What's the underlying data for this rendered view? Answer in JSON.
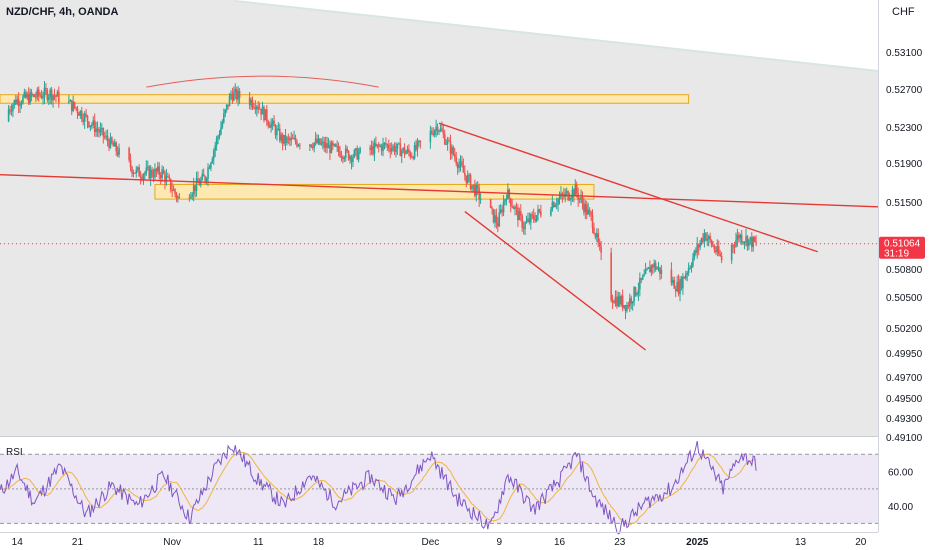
{
  "header": {
    "symbol": "NZD/CHF, 4h, OANDA",
    "currency": "CHF"
  },
  "colors": {
    "bull": "#26a69a",
    "bear": "#ef5350",
    "trendline": "#e53935",
    "zone_fill": "#fde9b0",
    "zone_stroke": "#e6a817",
    "rsi_line": "#7e57c2",
    "rsi_ma": "#f2b53c",
    "rsi_band": "#ede7f6",
    "price_label_bg": "#f23645",
    "chart_bg": "#e8e8e8",
    "axis_text": "#131722"
  },
  "price_label": {
    "value": "0.51064",
    "countdown": "31:19"
  },
  "rsi": {
    "label": "RSI",
    "tick_labels": [
      "60.00",
      "40.00"
    ]
  },
  "chart_data": [
    {
      "type": "candlestick",
      "title": "NZD/CHF, 4h, OANDA",
      "ylabel": "CHF",
      "ylim": [
        0.491,
        0.533
      ],
      "y_ticks": [
        0.531,
        0.527,
        0.523,
        0.519,
        0.515,
        0.508,
        0.505,
        0.502,
        0.4995,
        0.497,
        0.495,
        0.493,
        0.491
      ],
      "y_tick_labels": [
        "0.53100",
        "0.52700",
        "0.52300",
        "0.51900",
        "0.51500",
        "0.50800",
        "0.50500",
        "0.50200",
        "0.49950",
        "0.49700",
        "0.49500",
        "0.49300",
        "0.49100"
      ],
      "x_tick_labels": [
        "14",
        "21",
        "Nov",
        "11",
        "18",
        "Dec",
        "9",
        "16",
        "23",
        "2025",
        "13",
        "20"
      ],
      "x_range": [
        "2024-10-12",
        "2025-01-22"
      ],
      "last_price": 0.51064,
      "price_anchors": [
        {
          "date": "2024-10-12",
          "price": 0.5236
        },
        {
          "date": "2024-10-14",
          "price": 0.5258
        },
        {
          "date": "2024-10-18",
          "price": 0.5266
        },
        {
          "date": "2024-10-21",
          "price": 0.525
        },
        {
          "date": "2024-10-24",
          "price": 0.5222
        },
        {
          "date": "2024-10-28",
          "price": 0.518
        },
        {
          "date": "2024-10-31",
          "price": 0.518
        },
        {
          "date": "2024-11-02",
          "price": 0.5152
        },
        {
          "date": "2024-11-05",
          "price": 0.5175
        },
        {
          "date": "2024-11-08",
          "price": 0.5265
        },
        {
          "date": "2024-11-11",
          "price": 0.5255
        },
        {
          "date": "2024-11-14",
          "price": 0.5215
        },
        {
          "date": "2024-11-18",
          "price": 0.5212
        },
        {
          "date": "2024-11-22",
          "price": 0.5198
        },
        {
          "date": "2024-11-26",
          "price": 0.521
        },
        {
          "date": "2024-11-29",
          "price": 0.52
        },
        {
          "date": "2024-12-02",
          "price": 0.5232
        },
        {
          "date": "2024-12-05",
          "price": 0.518
        },
        {
          "date": "2024-12-09",
          "price": 0.5128
        },
        {
          "date": "2024-12-10",
          "price": 0.516
        },
        {
          "date": "2024-12-12",
          "price": 0.5125
        },
        {
          "date": "2024-12-15",
          "price": 0.5148
        },
        {
          "date": "2024-12-18",
          "price": 0.5162
        },
        {
          "date": "2024-12-20",
          "price": 0.513
        },
        {
          "date": "2024-12-22",
          "price": 0.5052
        },
        {
          "date": "2024-12-24",
          "price": 0.5042
        },
        {
          "date": "2024-12-27",
          "price": 0.5085
        },
        {
          "date": "2024-12-30",
          "price": 0.506
        },
        {
          "date": "2025-01-02",
          "price": 0.5117
        },
        {
          "date": "2025-01-04",
          "price": 0.509
        },
        {
          "date": "2025-01-06",
          "price": 0.5115
        },
        {
          "date": "2025-01-08",
          "price": 0.5106
        }
      ],
      "zones": [
        {
          "from": "2024-10-12",
          "to": "2024-12-31",
          "low": 0.5255,
          "high": 0.5264
        },
        {
          "from": "2024-10-30",
          "to": "2024-12-20",
          "low": 0.5153,
          "high": 0.5168
        }
      ],
      "trendlines": [
        {
          "from": {
            "date": "2024-10-12",
            "price": 0.5178
          },
          "to": {
            "date": "2025-01-22",
            "price": 0.5145
          }
        },
        {
          "from": {
            "date": "2024-12-02",
            "price": 0.5234
          },
          "to": {
            "date": "2025-01-15",
            "price": 0.5098
          }
        },
        {
          "from": {
            "date": "2024-12-05",
            "price": 0.514
          },
          "to": {
            "date": "2024-12-26",
            "price": 0.4998
          }
        }
      ],
      "arc": {
        "from": "2024-10-29",
        "to": "2024-11-25",
        "price": 0.5272
      }
    },
    {
      "type": "line",
      "title": "RSI",
      "ylim": [
        25,
        80
      ],
      "bands": [
        30,
        50,
        70
      ],
      "y_tick_labels": [
        "60.00",
        "40.00"
      ],
      "rsi_anchors": [
        {
          "date": "2024-10-12",
          "value": 48
        },
        {
          "date": "2024-10-14",
          "value": 60
        },
        {
          "date": "2024-10-16",
          "value": 42
        },
        {
          "date": "2024-10-19",
          "value": 63
        },
        {
          "date": "2024-10-22",
          "value": 35
        },
        {
          "date": "2024-10-25",
          "value": 52
        },
        {
          "date": "2024-10-28",
          "value": 40
        },
        {
          "date": "2024-10-31",
          "value": 58
        },
        {
          "date": "2024-11-03",
          "value": 33
        },
        {
          "date": "2024-11-06",
          "value": 62
        },
        {
          "date": "2024-11-08",
          "value": 76
        },
        {
          "date": "2024-11-11",
          "value": 55
        },
        {
          "date": "2024-11-14",
          "value": 40
        },
        {
          "date": "2024-11-17",
          "value": 58
        },
        {
          "date": "2024-11-20",
          "value": 42
        },
        {
          "date": "2024-11-24",
          "value": 57
        },
        {
          "date": "2024-11-27",
          "value": 44
        },
        {
          "date": "2024-12-01",
          "value": 70
        },
        {
          "date": "2024-12-04",
          "value": 45
        },
        {
          "date": "2024-12-08",
          "value": 27
        },
        {
          "date": "2024-12-10",
          "value": 58
        },
        {
          "date": "2024-12-13",
          "value": 38
        },
        {
          "date": "2024-12-16",
          "value": 55
        },
        {
          "date": "2024-12-18",
          "value": 70
        },
        {
          "date": "2024-12-20",
          "value": 45
        },
        {
          "date": "2024-12-23",
          "value": 27
        },
        {
          "date": "2024-12-26",
          "value": 42
        },
        {
          "date": "2024-12-29",
          "value": 50
        },
        {
          "date": "2025-01-01",
          "value": 75
        },
        {
          "date": "2025-01-04",
          "value": 50
        },
        {
          "date": "2025-01-06",
          "value": 70
        },
        {
          "date": "2025-01-08",
          "value": 64
        }
      ]
    }
  ]
}
